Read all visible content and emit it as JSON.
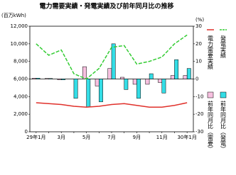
{
  "chart_data": {
    "type": "combo",
    "title": "電力需要実績・発電実績及び前年同月比の推移",
    "y_label": "(百万kWh)",
    "y2_label": "(%)",
    "categories": [
      "29年1月",
      null,
      "3月",
      null,
      "5月",
      null,
      "7月",
      null,
      "9月",
      null,
      "11月",
      null,
      "30年1月"
    ],
    "ylim": [
      0,
      12000
    ],
    "yticks": [
      0,
      {
        "value": 2000,
        "label": "2,000"
      },
      {
        "value": 4000,
        "label": "4,000"
      },
      {
        "value": 6000,
        "label": "6,000"
      },
      {
        "value": 8000,
        "label": "8,000"
      },
      {
        "value": 10000,
        "label": "10,000"
      },
      {
        "value": 12000,
        "label": "12,000"
      }
    ],
    "y2lim": [
      -30,
      30
    ],
    "y2ticks": [
      -30,
      -20,
      -10,
      0,
      10,
      20,
      30
    ],
    "series": [
      {
        "name": "電力需要実績",
        "kind": "line",
        "color": "#e0302a",
        "values": [
          3300,
          3200,
          3100,
          2900,
          2800,
          2900,
          3100,
          3200,
          3000,
          2800,
          2800,
          3000,
          3300
        ]
      },
      {
        "name": "発電実績",
        "kind": "dashed",
        "color": "#33cc33",
        "values": [
          10000,
          8700,
          9300,
          6600,
          6000,
          7200,
          9600,
          9800,
          7700,
          8000,
          8500,
          10000,
          11000
        ]
      },
      {
        "name": "前年同月比（需要）",
        "kind": "bar",
        "axis": "y2",
        "color": "#f7c0e0",
        "values": [
          0.5,
          0.3,
          -0.5,
          0,
          7,
          -4,
          6,
          1,
          -3,
          -3,
          -2,
          2,
          2
        ]
      },
      {
        "name": "前年同月比（発電）",
        "kind": "bar",
        "axis": "y2",
        "color": "#33dde6",
        "values": [
          0.5,
          0.3,
          -0.5,
          -11,
          -16,
          -13,
          20,
          -6,
          -11,
          3,
          -8,
          11,
          6
        ]
      }
    ]
  }
}
